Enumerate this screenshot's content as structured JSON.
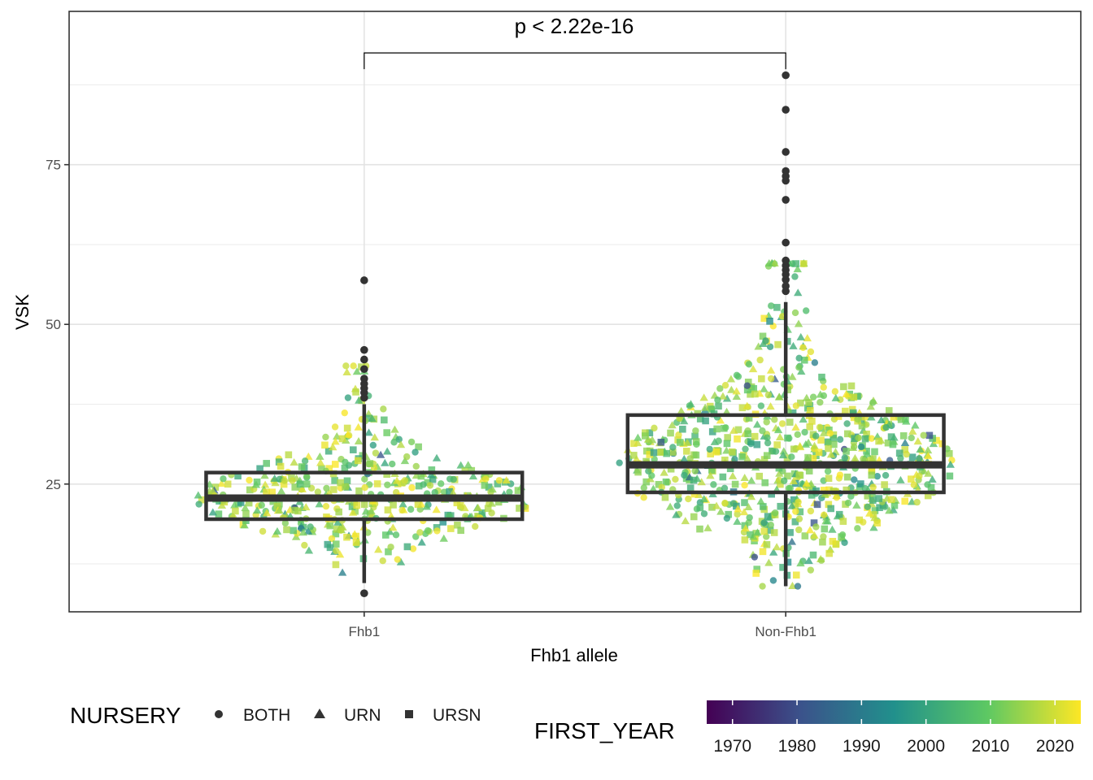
{
  "chart_data": {
    "type": "box",
    "xlabel": "Fhb1 allele",
    "ylabel": "VSK",
    "categories": [
      "Fhb1",
      "Non-Fhb1"
    ],
    "ylim": [
      5,
      99
    ],
    "yticks": [
      25,
      50,
      75
    ],
    "grid": true,
    "boxes": [
      {
        "category": "Fhb1",
        "min": 9.5,
        "q1": 19.5,
        "median": 22.8,
        "q3": 26.8,
        "max": 37.5,
        "outliers": [
          7.9,
          38.5,
          39.3,
          40.0,
          40.7,
          41.5,
          43.0,
          44.5,
          46.0,
          56.9
        ]
      },
      {
        "category": "Non-Fhb1",
        "min": 9.0,
        "q1": 23.7,
        "median": 28.0,
        "q3": 35.8,
        "max": 53.5,
        "outliers": [
          55.2,
          56.0,
          57.0,
          57.8,
          58.5,
          59.2,
          60.0,
          62.8,
          69.5,
          72.5,
          73.2,
          74.0,
          77.0,
          83.6,
          89.0
        ]
      }
    ],
    "annotation": {
      "text": "p < 2.22e-16",
      "from": "Fhb1",
      "to": "Non-Fhb1",
      "y": 92.5
    },
    "shape_legend": {
      "title": "NURSERY",
      "items": [
        {
          "label": "BOTH",
          "shape": "circle"
        },
        {
          "label": "URN",
          "shape": "triangle"
        },
        {
          "label": "URSN",
          "shape": "square"
        }
      ]
    },
    "color_legend": {
      "title": "FIRST_YEAR",
      "palette": "viridis",
      "range": [
        1966,
        2024
      ],
      "ticks": [
        1970,
        1980,
        1990,
        2000,
        2010,
        2020
      ]
    },
    "colors": {
      "box": "#333333",
      "outlier": "#333333",
      "viridis": [
        "#440154",
        "#3b528b",
        "#21908c",
        "#5dc863",
        "#fde725"
      ]
    }
  }
}
